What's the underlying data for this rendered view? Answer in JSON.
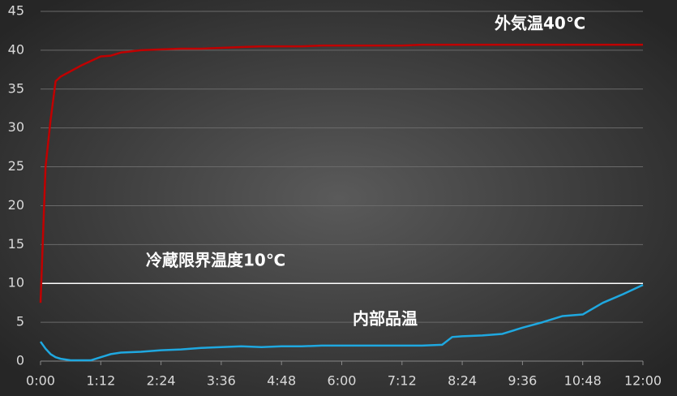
{
  "chart_data": {
    "type": "line",
    "x": [
      0,
      6,
      12,
      18,
      24,
      36,
      48,
      60,
      72,
      84,
      96,
      120,
      144,
      168,
      192,
      216,
      240,
      264,
      288,
      312,
      336,
      360,
      384,
      408,
      432,
      456,
      480,
      492,
      504,
      528,
      552,
      576,
      600,
      624,
      648,
      672,
      696,
      720
    ],
    "series": [
      {
        "name": "外気温40℃",
        "color": "#c00000",
        "values": [
          7.5,
          25,
          31,
          36,
          36.6,
          37.3,
          38,
          38.6,
          39.2,
          39.3,
          39.7,
          40,
          40.1,
          40.2,
          40.2,
          40.3,
          40.4,
          40.5,
          40.5,
          40.5,
          40.6,
          40.6,
          40.6,
          40.6,
          40.6,
          40.7,
          40.7,
          40.7,
          40.7,
          40.7,
          40.7,
          40.7,
          40.7,
          40.7,
          40.7,
          40.7,
          40.7,
          40.7
        ]
      },
      {
        "name": "内部品温",
        "color": "#1fa8e0",
        "values": [
          2.5,
          1.6,
          0.9,
          0.5,
          0.3,
          0.1,
          0.1,
          0.1,
          0.5,
          0.9,
          1.1,
          1.2,
          1.4,
          1.5,
          1.7,
          1.8,
          1.9,
          1.8,
          1.9,
          1.9,
          2.0,
          2.0,
          2.0,
          2.0,
          2.0,
          2.0,
          2.1,
          3.1,
          3.2,
          3.3,
          3.5,
          4.3,
          5.0,
          5.8,
          6.0,
          7.5,
          8.6,
          9.8
        ]
      }
    ],
    "reference_line": {
      "value": 10,
      "label": "冷蔵限界温度10℃",
      "color": "#ffffff"
    },
    "xlim": [
      0,
      720
    ],
    "xticks": [
      {
        "value": 0,
        "label": "0:00"
      },
      {
        "value": 72,
        "label": "1:12"
      },
      {
        "value": 144,
        "label": "2:24"
      },
      {
        "value": 216,
        "label": "3:36"
      },
      {
        "value": 288,
        "label": "4:48"
      },
      {
        "value": 360,
        "label": "6:00"
      },
      {
        "value": 432,
        "label": "7:12"
      },
      {
        "value": 504,
        "label": "8:24"
      },
      {
        "value": 576,
        "label": "9:36"
      },
      {
        "value": 648,
        "label": "10:48"
      },
      {
        "value": 720,
        "label": "12:00"
      }
    ],
    "ylim": [
      0,
      45
    ],
    "yticks": [
      0,
      5,
      10,
      15,
      20,
      25,
      30,
      35,
      40,
      45
    ],
    "grid": true
  }
}
